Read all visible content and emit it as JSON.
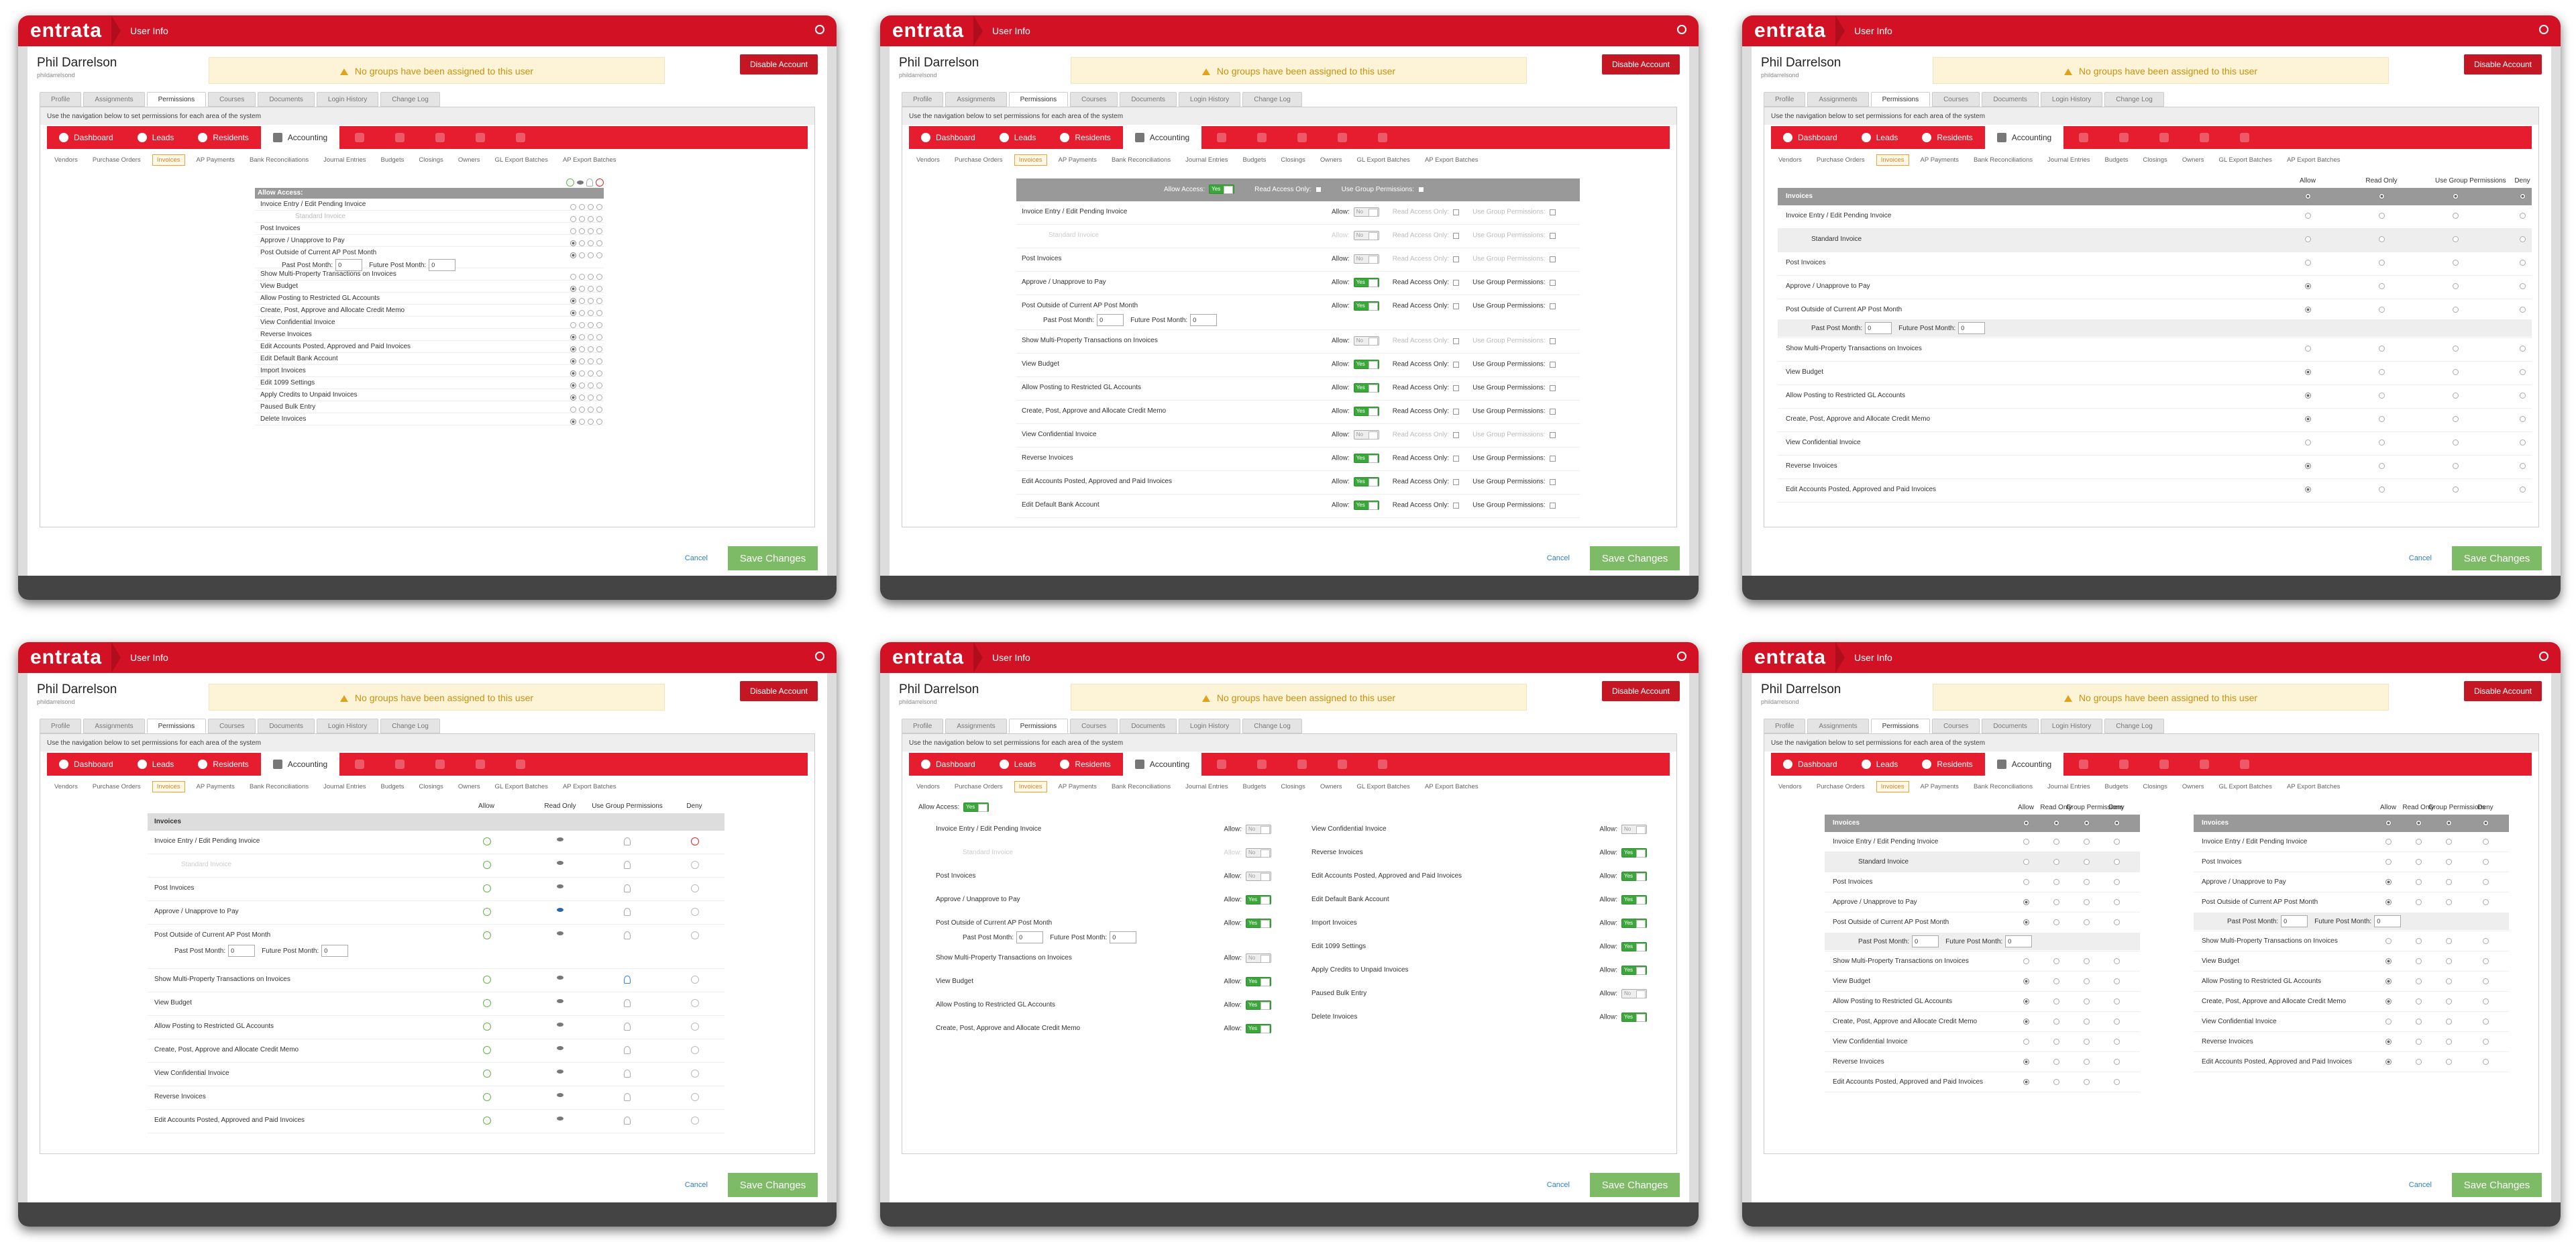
{
  "window": {
    "logo": "entrata",
    "title": "User Info"
  },
  "user": {
    "name": "Phil Darrelson",
    "login": "phildarrelsond",
    "warning": "No groups have been assigned to this user",
    "disable_label": "Disable Account"
  },
  "tabs": [
    "Profile",
    "Assignments",
    "Permissions",
    "Courses",
    "Documents",
    "Login History",
    "Change Log"
  ],
  "hint": "Use the navigation below to set permissions for each area of the system",
  "modules": [
    "Dashboard",
    "Leads",
    "Residents",
    "Accounting"
  ],
  "subnav": [
    "Vendors",
    "Purchase Orders",
    "Invoices",
    "AP Payments",
    "Bank Reconciliations",
    "Journal Entries",
    "Budgets",
    "Closings",
    "Owners",
    "GL Export Batches",
    "AP Export Batches"
  ],
  "footer": {
    "cancel": "Cancel",
    "save": "Save Changes"
  },
  "labels": {
    "allow_access": "Allow Access:",
    "allow": "Allow:",
    "read_only": "Read Access Only:",
    "group": "Use Group Permissions:",
    "past": "Past Post Month:",
    "future": "Future Post Month:",
    "yes": "Yes",
    "no": "No",
    "invoices": "Invoices",
    "col_allow": "Allow",
    "col_read": "Read Only",
    "col_group": "Use Group Permissions",
    "col_group_short": "Group Permissions",
    "col_deny": "Deny",
    "past_val": "0",
    "future_val": "0"
  },
  "permissions": [
    {
      "label": "Invoice Entry / Edit Pending Invoice",
      "allow": false
    },
    {
      "label": "Standard Invoice",
      "allow": false,
      "sub": true
    },
    {
      "label": "Post Invoices",
      "allow": false
    },
    {
      "label": "Approve / Unapprove to Pay",
      "allow": true
    },
    {
      "label": "Post Outside of Current AP Post Month",
      "allow": true,
      "months": true
    },
    {
      "label": "Show Multi-Property Transactions on Invoices",
      "allow": false
    },
    {
      "label": "View Budget",
      "allow": true
    },
    {
      "label": "Allow Posting to Restricted GL Accounts",
      "allow": true
    },
    {
      "label": "Create, Post, Approve and Allocate Credit Memo",
      "allow": true
    },
    {
      "label": "View Confidential Invoice",
      "allow": false
    },
    {
      "label": "Reverse Invoices",
      "allow": true
    },
    {
      "label": "Edit Accounts Posted, Approved and Paid Invoices",
      "allow": true
    },
    {
      "label": "Edit Default Bank Account",
      "allow": true
    },
    {
      "label": "Import Invoices",
      "allow": true
    },
    {
      "label": "Edit 1099 Settings",
      "allow": true
    },
    {
      "label": "Apply Credits to Unpaid Invoices",
      "allow": true
    },
    {
      "label": "Paused Bulk Entry",
      "allow": false
    },
    {
      "label": "Delete Invoices",
      "allow": true
    }
  ]
}
